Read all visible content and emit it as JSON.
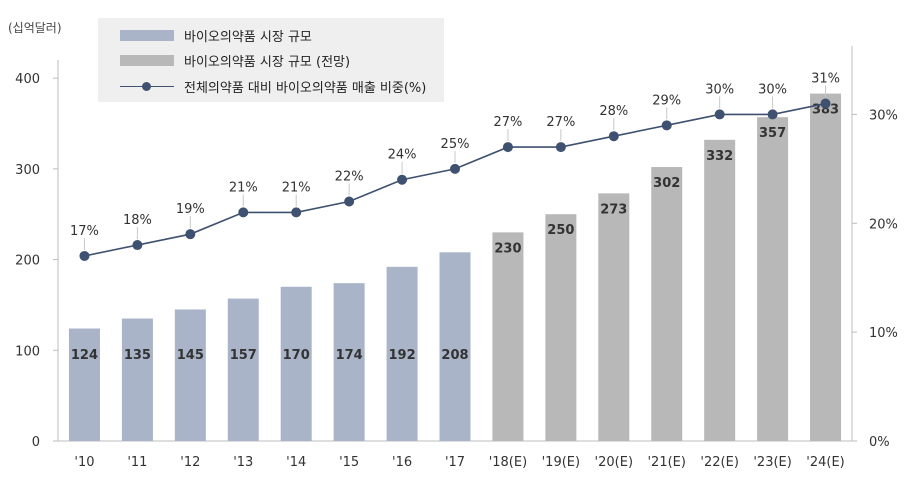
{
  "chart_data": {
    "type": "bar",
    "unit_label": "(십억달러)",
    "categories": [
      "'10",
      "'11",
      "'12",
      "'13",
      "'14",
      "'15",
      "'16",
      "'17",
      "'18(E)",
      "'19(E)",
      "'20(E)",
      "'21(E)",
      "'22(E)",
      "'23(E)",
      "'24(E)"
    ],
    "series": [
      {
        "name": "바이오의약품 시장 규모",
        "type": "bar",
        "color": "#a9b4c8",
        "values": [
          124,
          135,
          145,
          157,
          170,
          174,
          192,
          208,
          null,
          null,
          null,
          null,
          null,
          null,
          null
        ]
      },
      {
        "name": "바이오의약품 시장 규모 (전망)",
        "type": "bar",
        "color": "#b8b8b8",
        "values": [
          null,
          null,
          null,
          null,
          null,
          null,
          null,
          null,
          230,
          250,
          273,
          302,
          332,
          357,
          383
        ]
      },
      {
        "name": "전체의약품 대비 바이오의약품 매출 비중(%)",
        "type": "line",
        "axis": "right",
        "color": "#3e5170",
        "values": [
          17,
          18,
          19,
          21,
          21,
          22,
          24,
          25,
          27,
          27,
          28,
          29,
          30,
          30,
          31
        ],
        "labels": [
          "17%",
          "18%",
          "19%",
          "21%",
          "21%",
          "22%",
          "24%",
          "25%",
          "27%",
          "27%",
          "28%",
          "29%",
          "30%",
          "30%",
          "31%"
        ]
      }
    ],
    "y_left": {
      "ticks": [
        0,
        100,
        200,
        300,
        400
      ],
      "tick_labels": [
        "0",
        "100",
        "200",
        "300",
        "400"
      ],
      "ylim": [
        0,
        420
      ]
    },
    "y_right": {
      "ticks": [
        0,
        10,
        20,
        30
      ],
      "tick_labels": [
        "0%",
        "10%",
        "20%",
        "30%"
      ],
      "ylim": [
        0,
        35
      ]
    },
    "grid": false,
    "legend_position": "top-left"
  }
}
